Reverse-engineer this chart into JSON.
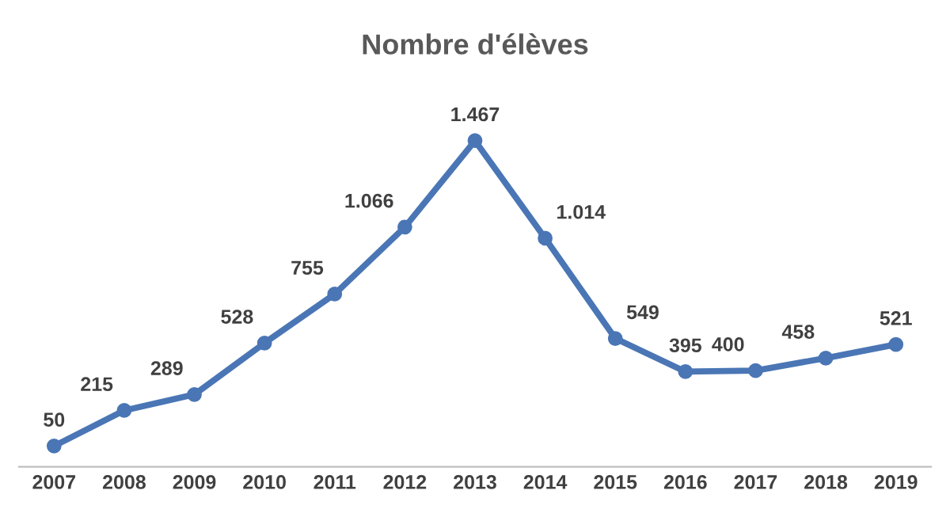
{
  "chart_data": {
    "type": "line",
    "title": "Nombre d'élèves",
    "categories": [
      "2007",
      "2008",
      "2009",
      "2010",
      "2011",
      "2012",
      "2013",
      "2014",
      "2015",
      "2016",
      "2017",
      "2018",
      "2019"
    ],
    "series": [
      {
        "color": "#4a76b5",
        "values": [
          50,
          215,
          289,
          528,
          755,
          1066,
          1467,
          1014,
          549,
          395,
          400,
          458,
          521
        ],
        "value_labels": [
          "50",
          "215",
          "289",
          "528",
          "755",
          "1.066",
          "1.467",
          "1.014",
          "549",
          "395",
          "400",
          "458",
          "521"
        ]
      }
    ],
    "marker": "circle",
    "line_style": "solid",
    "grid": false,
    "tick_labels": "x"
  }
}
